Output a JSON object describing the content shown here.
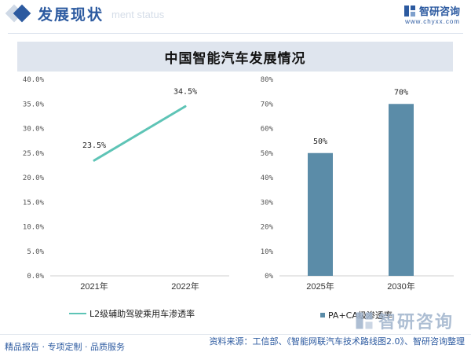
{
  "header": {
    "title": "发展现状",
    "subtitle": "ment status",
    "logo_name": "智研咨询",
    "logo_url": "www.chyxx.com"
  },
  "chart_title": "中国智能汽车发展情况",
  "footer": {
    "left_text": "精品报告 · 专项定制 · 品质服务",
    "source": "资料来源：工信部、《智能网联汽车技术路线图2.0》、智研咨询整理"
  },
  "watermark": "智研咨询",
  "colors": {
    "brand": "#2c5aa0",
    "line": "#5ec4b6",
    "bar": "#5b8ca8",
    "title_bar": "#dfe5ee"
  },
  "chart_data": [
    {
      "type": "line",
      "categories": [
        "2021年",
        "2022年"
      ],
      "series": [
        {
          "name": "L2级辅助驾驶乘用车渗透率",
          "values": [
            23.5,
            34.5
          ],
          "labels": [
            "23.5%",
            "34.5%"
          ]
        }
      ],
      "yticks": [
        "0.0%",
        "5.0%",
        "10.0%",
        "15.0%",
        "20.0%",
        "25.0%",
        "30.0%",
        "35.0%",
        "40.0%"
      ],
      "ylim": [
        0,
        40
      ],
      "legend": "bottom"
    },
    {
      "type": "bar",
      "categories": [
        "2025年",
        "2030年"
      ],
      "series": [
        {
          "name": "PA+CA级渗透率",
          "values": [
            50,
            70
          ],
          "labels": [
            "50%",
            "70%"
          ]
        }
      ],
      "yticks": [
        "0%",
        "10%",
        "20%",
        "30%",
        "40%",
        "50%",
        "60%",
        "70%",
        "80%"
      ],
      "ylim": [
        0,
        80
      ],
      "legend": "bottom"
    }
  ]
}
